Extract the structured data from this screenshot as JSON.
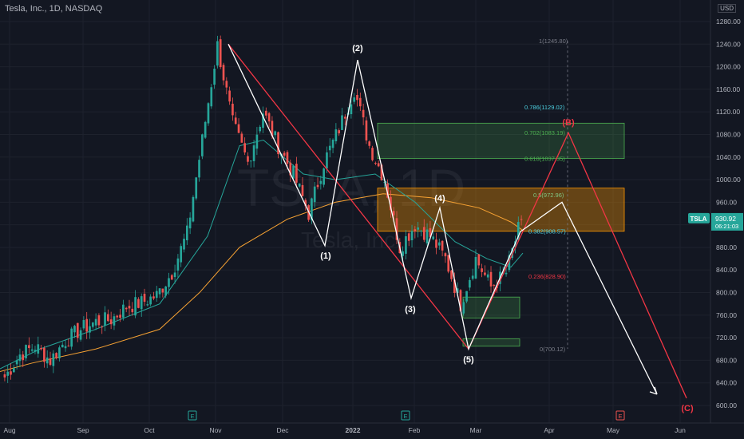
{
  "header": {
    "title": "Tesla, Inc., 1D, NASDAQ",
    "currency": "USD"
  },
  "watermark": {
    "ticker": "TSLA, 1D",
    "name": "Tesla, Inc."
  },
  "price_tag": {
    "symbol": "TSLA",
    "price": "930.92",
    "countdown": "06:21:03"
  },
  "colors": {
    "background": "#131722",
    "up": "#26a69a",
    "down": "#ef5350",
    "ma_slow": "#f7a233",
    "ma_fast": "#26a69a",
    "red_wave": "#f23645",
    "white_wave": "#ffffff"
  },
  "chart_data": {
    "type": "candlestick",
    "ylim": [
      590,
      1285
    ],
    "y_ticks": [
      "1280.00",
      "1240.00",
      "1200.00",
      "1160.00",
      "1120.00",
      "1080.00",
      "1040.00",
      "1000.00",
      "960.00",
      "920.00",
      "880.00",
      "840.00",
      "800.00",
      "760.00",
      "720.00",
      "680.00",
      "640.00",
      "600.00"
    ],
    "x_ticks": [
      "Aug",
      "Sep",
      "Oct",
      "Nov",
      "Dec",
      "2022",
      "Feb",
      "Mar",
      "Apr",
      "May",
      "Jun"
    ],
    "earnings_markers": [
      "E",
      "E",
      "E"
    ],
    "candle_path": [
      [
        "2021-07-26",
        650
      ],
      [
        "2021-08-02",
        690
      ],
      [
        "2021-08-09",
        705
      ],
      [
        "2021-08-16",
        680
      ],
      [
        "2021-08-23",
        715
      ],
      [
        "2021-08-30",
        735
      ],
      [
        "2021-09-06",
        748
      ],
      [
        "2021-09-13",
        752
      ],
      [
        "2021-09-20",
        775
      ],
      [
        "2021-09-27",
        782
      ],
      [
        "2021-10-04",
        795
      ],
      [
        "2021-10-11",
        835
      ],
      [
        "2021-10-18",
        905
      ],
      [
        "2021-10-25",
        1070
      ],
      [
        "2021-11-01",
        1238
      ],
      [
        "2021-11-08",
        1100
      ],
      [
        "2021-11-15",
        1030
      ],
      [
        "2021-11-22",
        1120
      ],
      [
        "2021-11-29",
        1060
      ],
      [
        "2021-12-06",
        1010
      ],
      [
        "2021-12-13",
        940
      ],
      [
        "2021-12-20",
        1030
      ],
      [
        "2021-12-27",
        1090
      ],
      [
        "2022-01-03",
        1160
      ],
      [
        "2022-01-10",
        1060
      ],
      [
        "2022-01-17",
        1000
      ],
      [
        "2022-01-24",
        880
      ],
      [
        "2022-01-31",
        920
      ],
      [
        "2022-02-07",
        900
      ],
      [
        "2022-02-14",
        860
      ],
      [
        "2022-02-21",
        780
      ],
      [
        "2022-02-28",
        860
      ],
      [
        "2022-03-07",
        810
      ],
      [
        "2022-03-14",
        835
      ],
      [
        "2022-03-21",
        930
      ]
    ],
    "ma_slow": [
      [
        0,
        660
      ],
      [
        40,
        675
      ],
      [
        120,
        700
      ],
      [
        200,
        735
      ],
      [
        250,
        800
      ],
      [
        300,
        880
      ],
      [
        360,
        930
      ],
      [
        420,
        960
      ],
      [
        480,
        975
      ],
      [
        540,
        968
      ],
      [
        600,
        950
      ],
      [
        640,
        925
      ],
      [
        655,
        910
      ]
    ],
    "ma_fast": [
      [
        0,
        665
      ],
      [
        50,
        700
      ],
      [
        120,
        735
      ],
      [
        200,
        780
      ],
      [
        260,
        900
      ],
      [
        300,
        1060
      ],
      [
        330,
        1070
      ],
      [
        380,
        1010
      ],
      [
        420,
        1000
      ],
      [
        470,
        1010
      ],
      [
        520,
        960
      ],
      [
        570,
        890
      ],
      [
        610,
        860
      ],
      [
        640,
        845
      ],
      [
        655,
        870
      ]
    ],
    "fibonacci": [
      {
        "label": "1(1245.80)",
        "value": 1245.8
      },
      {
        "label": "0.786(1129.02)",
        "value": 1129.02
      },
      {
        "label": "0.702(1083.19)",
        "value": 1083.19
      },
      {
        "label": "0.618(1037.35)",
        "value": 1037.35
      },
      {
        "label": "0.5(972.96)",
        "value": 972.96
      },
      {
        "label": "0.382(908.57)",
        "value": 908.57
      },
      {
        "label": "0.236(828.90)",
        "value": 828.9
      },
      {
        "label": "0(700.12)",
        "value": 700.12
      }
    ],
    "zones": [
      {
        "name": "green-zone-upper",
        "from": 1037.35,
        "to": 1100,
        "x0": 473,
        "x1": 782,
        "color": "green"
      },
      {
        "name": "orange-zone",
        "from": 908.57,
        "to": 985,
        "x0": 473,
        "x1": 782,
        "color": "orange"
      },
      {
        "name": "green-zone-mid",
        "from": 755,
        "to": 792,
        "x0": 580,
        "x1": 651,
        "color": "green"
      },
      {
        "name": "green-zone-low",
        "from": 705,
        "to": 718,
        "x0": 580,
        "x1": 651,
        "color": "green"
      }
    ],
    "white_wave": [
      {
        "x": 286,
        "y": 1240
      },
      {
        "x": 407,
        "y": 883
      },
      {
        "x": 448,
        "y": 1212
      },
      {
        "x": 515,
        "y": 790
      },
      {
        "x": 551,
        "y": 950
      },
      {
        "x": 587,
        "y": 700
      },
      {
        "x": 652,
        "y": 908
      },
      {
        "x": 704,
        "y": 960
      },
      {
        "x": 823,
        "y": 620
      }
    ],
    "wave_labels": [
      "(1)",
      "(2)",
      "(3)",
      "(4)",
      "(5)",
      "(B)",
      "(C)"
    ],
    "red_wave": [
      {
        "x": 286,
        "y": 1240
      },
      {
        "x": 587,
        "y": 700
      },
      {
        "x": 712,
        "y": 1083
      },
      {
        "x": 860,
        "y": 613
      }
    ]
  }
}
